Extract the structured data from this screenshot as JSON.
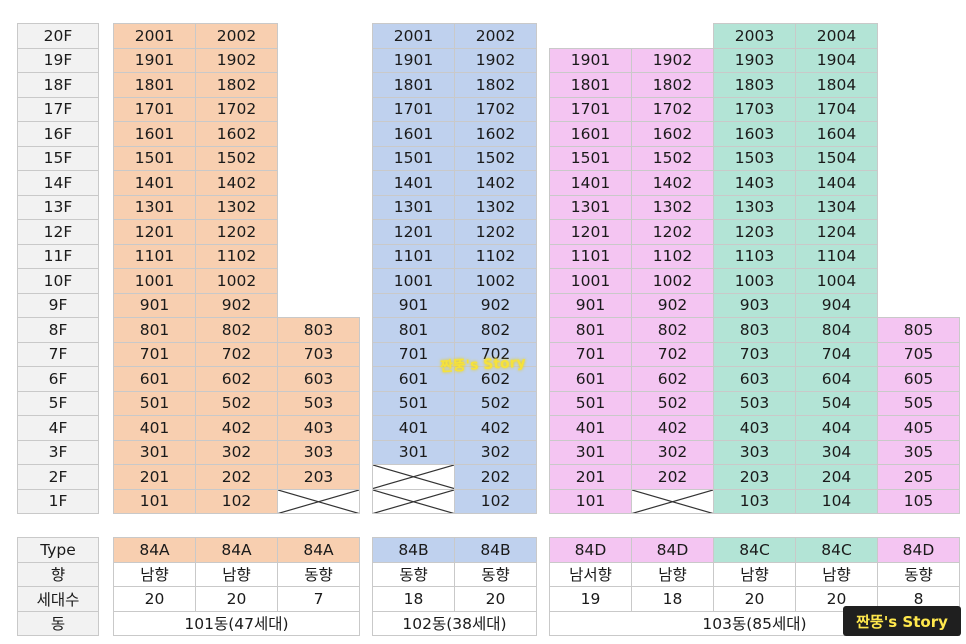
{
  "floors": [
    "20F",
    "19F",
    "18F",
    "17F",
    "16F",
    "15F",
    "14F",
    "13F",
    "12F",
    "11F",
    "10F",
    "9F",
    "8F",
    "7F",
    "6F",
    "5F",
    "4F",
    "3F",
    "2F",
    "1F"
  ],
  "units": {
    "c1": {
      "color": "orange",
      "vals": [
        "2001",
        "1901",
        "1801",
        "1701",
        "1601",
        "1501",
        "1401",
        "1301",
        "1201",
        "1101",
        "1001",
        "901",
        "801",
        "701",
        "601",
        "501",
        "401",
        "301",
        "201",
        "101"
      ]
    },
    "c2": {
      "color": "orange",
      "vals": [
        "2002",
        "1902",
        "1802",
        "1702",
        "1602",
        "1502",
        "1402",
        "1302",
        "1202",
        "1102",
        "1002",
        "902",
        "802",
        "702",
        "602",
        "502",
        "402",
        "302",
        "202",
        "102"
      ]
    },
    "c3": {
      "color": "orange",
      "vals": [
        null,
        null,
        null,
        null,
        null,
        null,
        null,
        null,
        null,
        null,
        null,
        null,
        "803",
        "703",
        "603",
        "503",
        "403",
        "303",
        "203",
        "X"
      ]
    },
    "c4": {
      "color": "blue",
      "vals": [
        "2001",
        "1901",
        "1801",
        "1701",
        "1601",
        "1501",
        "1401",
        "1301",
        "1201",
        "1101",
        "1001",
        "901",
        "801",
        "701",
        "601",
        "501",
        "401",
        "301",
        "X",
        "X"
      ]
    },
    "c5": {
      "color": "blue",
      "vals": [
        "2002",
        "1902",
        "1802",
        "1702",
        "1602",
        "1502",
        "1402",
        "1302",
        "1202",
        "1102",
        "1002",
        "902",
        "802",
        "702",
        "602",
        "502",
        "402",
        "302",
        "202",
        "102"
      ]
    },
    "c6": {
      "color": "pink",
      "vals": [
        null,
        "1901",
        "1801",
        "1701",
        "1601",
        "1501",
        "1401",
        "1301",
        "1201",
        "1101",
        "1001",
        "901",
        "801",
        "701",
        "601",
        "501",
        "401",
        "301",
        "201",
        "101"
      ]
    },
    "c7": {
      "color": "pink",
      "vals": [
        null,
        "1902",
        "1802",
        "1702",
        "1602",
        "1502",
        "1402",
        "1302",
        "1202",
        "1102",
        "1002",
        "902",
        "802",
        "702",
        "602",
        "502",
        "402",
        "302",
        "202",
        "X"
      ]
    },
    "c8": {
      "color": "teal",
      "vals": [
        "2003",
        "1903",
        "1803",
        "1703",
        "1603",
        "1503",
        "1403",
        "1303",
        "1203",
        "1103",
        "1003",
        "903",
        "803",
        "703",
        "603",
        "503",
        "403",
        "303",
        "203",
        "103"
      ]
    },
    "c9": {
      "color": "teal",
      "vals": [
        "2004",
        "1904",
        "1804",
        "1704",
        "1604",
        "1504",
        "1404",
        "1304",
        "1204",
        "1104",
        "1004",
        "904",
        "804",
        "704",
        "604",
        "504",
        "404",
        "304",
        "204",
        "104"
      ]
    },
    "c10": {
      "color": "pink",
      "vals": [
        null,
        null,
        null,
        null,
        null,
        null,
        null,
        null,
        null,
        null,
        null,
        null,
        "805",
        "705",
        "605",
        "505",
        "405",
        "305",
        "205",
        "105"
      ]
    }
  },
  "summary": {
    "labels": [
      "Type",
      "향",
      "세대수",
      "동"
    ],
    "type": [
      "84A",
      "84A",
      "84A",
      "84B",
      "84B",
      "84D",
      "84D",
      "84C",
      "84C",
      "84D"
    ],
    "direction": [
      "남향",
      "남향",
      "동향",
      "동향",
      "동향",
      "남서향",
      "남향",
      "남향",
      "남향",
      "동향"
    ],
    "households": [
      "20",
      "20",
      "7",
      "18",
      "20",
      "19",
      "18",
      "20",
      "20",
      "8"
    ],
    "buildings": [
      "101동(47세대)",
      "102동(38세대)",
      "103동(85세대)"
    ]
  },
  "watermark_mid": "짠뚱's Story",
  "logo": "짠뚱's Story"
}
